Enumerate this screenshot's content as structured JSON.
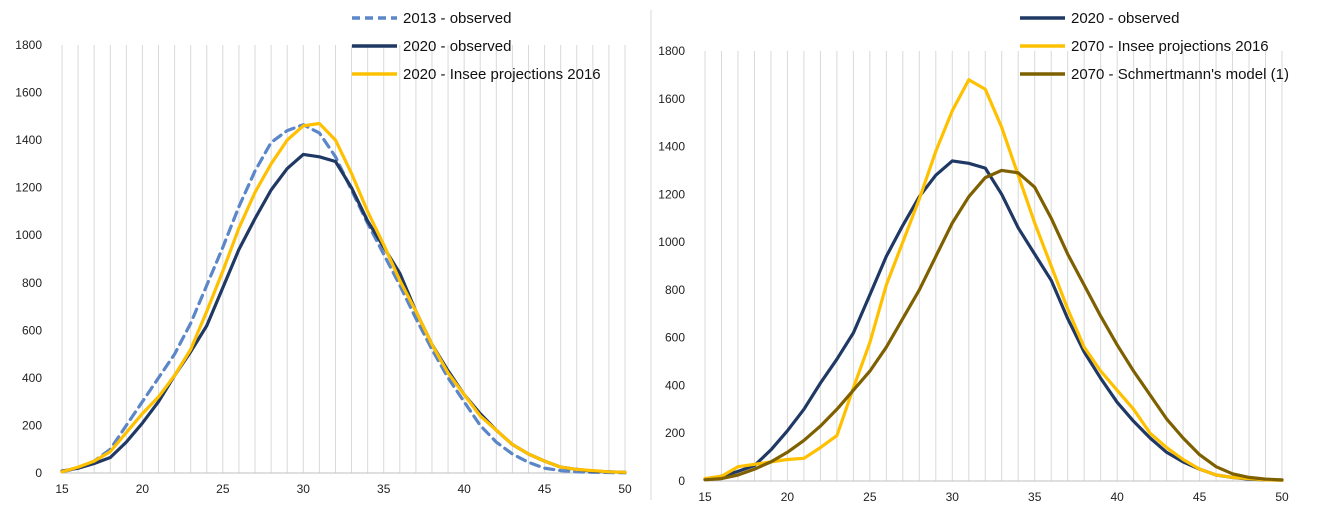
{
  "chart_data": [
    {
      "type": "line",
      "title": "",
      "xlabel": "",
      "ylabel": "",
      "xlim": [
        15,
        50
      ],
      "ylim": [
        0,
        1800
      ],
      "x_ticks": [
        15,
        20,
        25,
        30,
        35,
        40,
        45,
        50
      ],
      "y_ticks": [
        0,
        200,
        400,
        600,
        800,
        1000,
        1200,
        1400,
        1600,
        1800
      ],
      "grid": "vertical",
      "legend_position": "top-right",
      "x": [
        15,
        16,
        17,
        18,
        19,
        20,
        21,
        22,
        23,
        24,
        25,
        26,
        27,
        28,
        29,
        30,
        31,
        32,
        33,
        34,
        35,
        36,
        37,
        38,
        39,
        40,
        41,
        42,
        43,
        44,
        45,
        46,
        47,
        48,
        49,
        50
      ],
      "series": [
        {
          "name": "2013 - observed",
          "color": "#5b86c8",
          "dash": "dashed",
          "values": [
            5,
            20,
            50,
            100,
            200,
            300,
            400,
            500,
            630,
            790,
            950,
            1120,
            1270,
            1390,
            1440,
            1465,
            1430,
            1330,
            1190,
            1050,
            920,
            790,
            650,
            520,
            400,
            300,
            200,
            130,
            80,
            45,
            20,
            10,
            5,
            3,
            2,
            1
          ]
        },
        {
          "name": "2020 - observed",
          "color": "#1f3864",
          "dash": "solid",
          "values": [
            8,
            20,
            40,
            65,
            130,
            210,
            300,
            410,
            510,
            620,
            780,
            940,
            1070,
            1190,
            1280,
            1340,
            1330,
            1310,
            1200,
            1060,
            950,
            840,
            680,
            540,
            430,
            330,
            250,
            180,
            120,
            80,
            50,
            25,
            15,
            8,
            5,
            3
          ]
        },
        {
          "name": "2020 - Insee projections 2016",
          "color": "#ffc000",
          "dash": "solid",
          "values": [
            5,
            25,
            50,
            90,
            170,
            250,
            320,
            410,
            520,
            680,
            850,
            1030,
            1180,
            1300,
            1400,
            1460,
            1470,
            1400,
            1260,
            1100,
            960,
            810,
            680,
            540,
            420,
            330,
            240,
            180,
            120,
            80,
            50,
            25,
            15,
            10,
            5,
            3
          ]
        }
      ]
    },
    {
      "type": "line",
      "title": "",
      "xlabel": "",
      "ylabel": "",
      "xlim": [
        15,
        50
      ],
      "ylim": [
        0,
        1800
      ],
      "x_ticks": [
        15,
        20,
        25,
        30,
        35,
        40,
        45,
        50
      ],
      "y_ticks": [
        0,
        200,
        400,
        600,
        800,
        1000,
        1200,
        1400,
        1600,
        1800
      ],
      "grid": "vertical",
      "legend_position": "top-right",
      "x": [
        15,
        16,
        17,
        18,
        19,
        20,
        21,
        22,
        23,
        24,
        25,
        26,
        27,
        28,
        29,
        30,
        31,
        32,
        33,
        34,
        35,
        36,
        37,
        38,
        39,
        40,
        41,
        42,
        43,
        44,
        45,
        46,
        47,
        48,
        49,
        50
      ],
      "series": [
        {
          "name": "2020 - observed",
          "color": "#1f3864",
          "dash": "solid",
          "values": [
            8,
            20,
            40,
            65,
            130,
            210,
            300,
            410,
            510,
            620,
            780,
            940,
            1070,
            1190,
            1280,
            1340,
            1330,
            1310,
            1200,
            1060,
            950,
            840,
            680,
            540,
            430,
            330,
            250,
            180,
            120,
            80,
            50,
            25,
            15,
            8,
            5,
            3
          ]
        },
        {
          "name": "2070 - Insee projections 2016",
          "color": "#ffc000",
          "dash": "solid",
          "values": [
            10,
            20,
            60,
            70,
            80,
            90,
            95,
            140,
            190,
            390,
            580,
            820,
            1000,
            1180,
            1380,
            1550,
            1680,
            1640,
            1480,
            1280,
            1080,
            900,
            720,
            560,
            460,
            380,
            300,
            200,
            140,
            90,
            50,
            25,
            15,
            10,
            5,
            3
          ]
        },
        {
          "name": "2070 - Schmertmann's model (1)",
          "color": "#7f6000",
          "dash": "solid",
          "values": [
            5,
            10,
            25,
            50,
            80,
            120,
            170,
            230,
            300,
            380,
            460,
            560,
            680,
            800,
            940,
            1080,
            1190,
            1270,
            1300,
            1290,
            1230,
            1100,
            950,
            820,
            690,
            570,
            460,
            360,
            260,
            180,
            110,
            60,
            30,
            15,
            8,
            5
          ]
        }
      ]
    }
  ]
}
